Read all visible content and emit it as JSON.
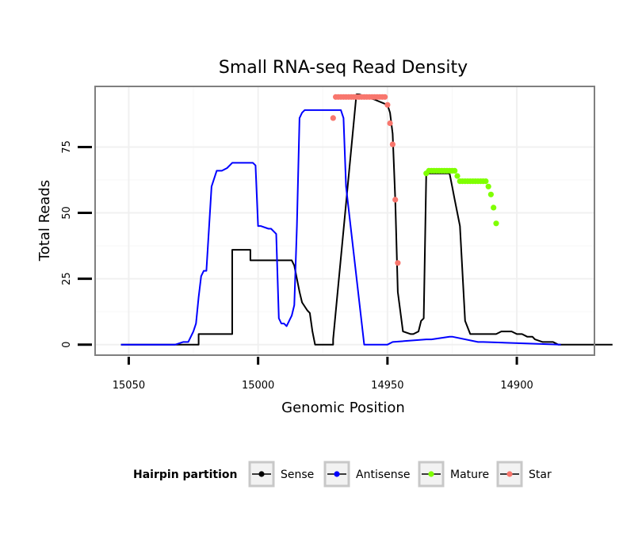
{
  "chart_data": {
    "type": "line",
    "title": "Small RNA-seq Read Density",
    "xlabel": "Genomic Position",
    "ylabel": "Total Reads",
    "x_reversed": true,
    "xlim": [
      15063,
      14870
    ],
    "ylim": [
      -4,
      98
    ],
    "x_ticks": [
      15050,
      15000,
      14950,
      14900
    ],
    "y_ticks": [
      0,
      25,
      50,
      75
    ],
    "grid": true,
    "legend": {
      "title": "Hairpin partition",
      "position": "bottom",
      "entries": [
        {
          "label": "Sense",
          "color": "#000000"
        },
        {
          "label": "Antisense",
          "color": "#0000ff"
        },
        {
          "label": "Mature",
          "color": "#7fff00"
        },
        {
          "label": "Star",
          "color": "#f8766d"
        }
      ]
    },
    "series": [
      {
        "name": "Sense",
        "color": "#000000",
        "x": [
          15053,
          15023,
          15023,
          15013,
          15010,
          15010,
          15007,
          15003,
          15003,
          14989,
          14987,
          14986,
          14985,
          14984,
          14983,
          14981,
          14980,
          14979,
          14978,
          14971,
          14971,
          14962,
          14961,
          14955,
          14950,
          14949,
          14948,
          14947,
          14946,
          14944,
          14941,
          14940,
          14938,
          14937,
          14936,
          14935,
          14926,
          14925,
          14924,
          14923,
          14922,
          14920,
          14918,
          14914,
          14910,
          14908,
          14906,
          14905,
          14904,
          14902,
          14900,
          14898,
          14896,
          14894,
          14893,
          14890,
          14886,
          14884,
          14880,
          14863
        ],
        "y": [
          0,
          0,
          4,
          4,
          4,
          36,
          36,
          36,
          32,
          32,
          32,
          30,
          25,
          20,
          16,
          13,
          12,
          5,
          0,
          0,
          2,
          95,
          95,
          93,
          91,
          88,
          80,
          55,
          20,
          5,
          4,
          4,
          5,
          9,
          10,
          65,
          65,
          60,
          55,
          50,
          45,
          9,
          4,
          4,
          4,
          4,
          5,
          5,
          5,
          5,
          4,
          4,
          3,
          3,
          2,
          1,
          1,
          0,
          0,
          0
        ]
      },
      {
        "name": "Antisense",
        "color": "#0000ff",
        "x": [
          15053,
          15032,
          15029,
          15027,
          15026,
          15025,
          15024,
          15023,
          15022,
          15021,
          15020,
          15018,
          15016,
          15014,
          15012,
          15010,
          15002,
          15001,
          15000,
          14999,
          14996,
          14995,
          14993,
          14992,
          14991,
          14990,
          14989,
          14988,
          14987,
          14986,
          14985,
          14984,
          14983,
          14982,
          14981,
          14980,
          14970,
          14968,
          14967,
          14966,
          14959,
          14958,
          14950,
          14948,
          14935,
          14933,
          14926,
          14925,
          14915,
          14913,
          14883
        ],
        "y": [
          0,
          0,
          1,
          1,
          3,
          5,
          8,
          18,
          26,
          28,
          28,
          60,
          66,
          66,
          67,
          69,
          69,
          68,
          45,
          45,
          44,
          44,
          42,
          10,
          8,
          8,
          7,
          9,
          11,
          15,
          45,
          86,
          88,
          89,
          89,
          89,
          89,
          89,
          86,
          60,
          0,
          0,
          0,
          1,
          2,
          2,
          3,
          3,
          1,
          1,
          0
        ]
      },
      {
        "name": "Mature",
        "color": "#7fff00",
        "x": [
          14935,
          14934,
          14933,
          14932,
          14931,
          14930,
          14929,
          14928,
          14927,
          14926,
          14925,
          14924,
          14923,
          14922,
          14921,
          14920,
          14919,
          14918,
          14917,
          14916,
          14915,
          14914,
          14913,
          14912,
          14911,
          14910,
          14909,
          14908
        ],
        "y": [
          65,
          66,
          66,
          66,
          66,
          66,
          66,
          66,
          66,
          66,
          66,
          66,
          64,
          62,
          62,
          62,
          62,
          62,
          62,
          62,
          62,
          62,
          62,
          62,
          60,
          57,
          52,
          46
        ]
      },
      {
        "name": "Star",
        "color": "#f8766d",
        "x": [
          14971,
          14970,
          14969,
          14968,
          14967,
          14966,
          14965,
          14964,
          14963,
          14962,
          14961,
          14960,
          14959,
          14958,
          14957,
          14956,
          14955,
          14954,
          14953,
          14952,
          14951,
          14950,
          14949,
          14948,
          14947,
          14946
        ],
        "y": [
          86,
          94,
          94,
          94,
          94,
          94,
          94,
          94,
          94,
          94,
          94,
          94,
          94,
          94,
          94,
          94,
          94,
          94,
          94,
          94,
          94,
          91,
          84,
          76,
          55,
          31
        ]
      }
    ]
  }
}
